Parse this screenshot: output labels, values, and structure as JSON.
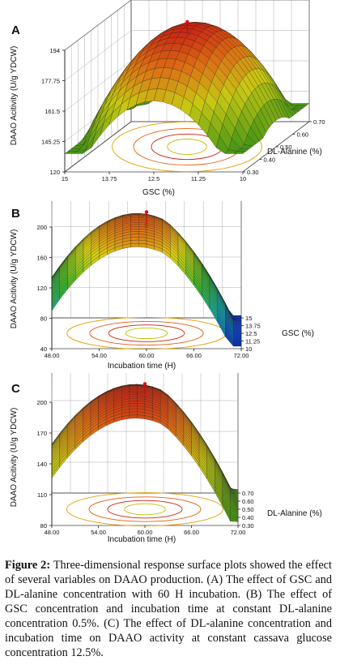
{
  "chart_data": [
    {
      "panel": "A",
      "type": "surface3d",
      "title": "",
      "zlabel": "DAAO Acitivity (U/g YDCW)",
      "xlabel": "GSC (%)",
      "ylabel": "DL-Alanine (%)",
      "x_ticks": [
        "15",
        "13.75",
        "12.5",
        "11.25",
        "10"
      ],
      "y_ticks": [
        "0.30",
        "0.40",
        "0.50",
        "0.60",
        "0.70"
      ],
      "z_ticks": [
        "120",
        "145.25",
        "161.5",
        "177.75",
        "194"
      ],
      "xlim": [
        10,
        15
      ],
      "ylim": [
        0.3,
        0.7
      ],
      "zlim": [
        120,
        194
      ],
      "surface_peak": {
        "x": 12.5,
        "y": 0.5,
        "z": 194
      },
      "colormap": "green-to-red"
    },
    {
      "panel": "B",
      "type": "surface3d",
      "title": "",
      "zlabel": "DAAO Acitivity (U/g YDCW)",
      "xlabel": "Incubation time (H)",
      "ylabel": "GSC (%)",
      "x_ticks": [
        "48.00",
        "54.00",
        "60.00",
        "66.00",
        "72.00"
      ],
      "y_ticks": [
        "10",
        "11.25",
        "12.5",
        "13.75",
        "15"
      ],
      "z_ticks": [
        "40",
        "80",
        "120",
        "160",
        "200"
      ],
      "xlim": [
        48,
        72
      ],
      "ylim": [
        10,
        15
      ],
      "zlim": [
        40,
        200
      ],
      "surface_peak": {
        "x": 60,
        "y": 12.5,
        "z": 192
      },
      "colormap": "blue-to-red"
    },
    {
      "panel": "C",
      "type": "surface3d",
      "title": "",
      "zlabel": "DAAO Acitivity (U/g YDCW)",
      "xlabel": "Incubation time (H)",
      "ylabel": "DL-Alanine (%)",
      "x_ticks": [
        "48.00",
        "54.00",
        "60.00",
        "66.00",
        "72.00"
      ],
      "y_ticks": [
        "0.30",
        "0.40",
        "0.50",
        "0.60",
        "0.70"
      ],
      "z_ticks": [
        "80",
        "110",
        "140",
        "170",
        "200"
      ],
      "xlim": [
        48,
        72
      ],
      "ylim": [
        0.3,
        0.7
      ],
      "zlim": [
        80,
        200
      ],
      "surface_peak": {
        "x": 60,
        "y": 0.5,
        "z": 200
      },
      "colormap": "green-to-red"
    }
  ],
  "panels": [
    {
      "letter": "A",
      "zlabel": "DAAO Acitivity (U/g YDCW)",
      "xlabel": "GSC (%)",
      "ylabel": "DL-Alanine (%)"
    },
    {
      "letter": "B",
      "zlabel": "DAAO Acitivity (U/g YDCW)",
      "xlabel": "Incubation time (H)",
      "ylabel": "GSC (%)"
    },
    {
      "letter": "C",
      "zlabel": "DAAO Acitivity (U/g YDCW)",
      "xlabel": "Incubation time (H)",
      "ylabel": "DL-Alanine (%)"
    }
  ],
  "caption": {
    "label": "Figure 2:",
    "text": "Three-dimensional response surface plots showed the effect of several variables on DAAO production. (A) The effect of GSC and DL-alanine concentration with 60 H incubation. (B) The effect of GSC concentration and incubation time at constant DL-alanine concentration 0.5%. (C) The effect of DL-alanine concentration and incubation time on DAAO activity at constant cassava glucose concentration 12.5%."
  }
}
